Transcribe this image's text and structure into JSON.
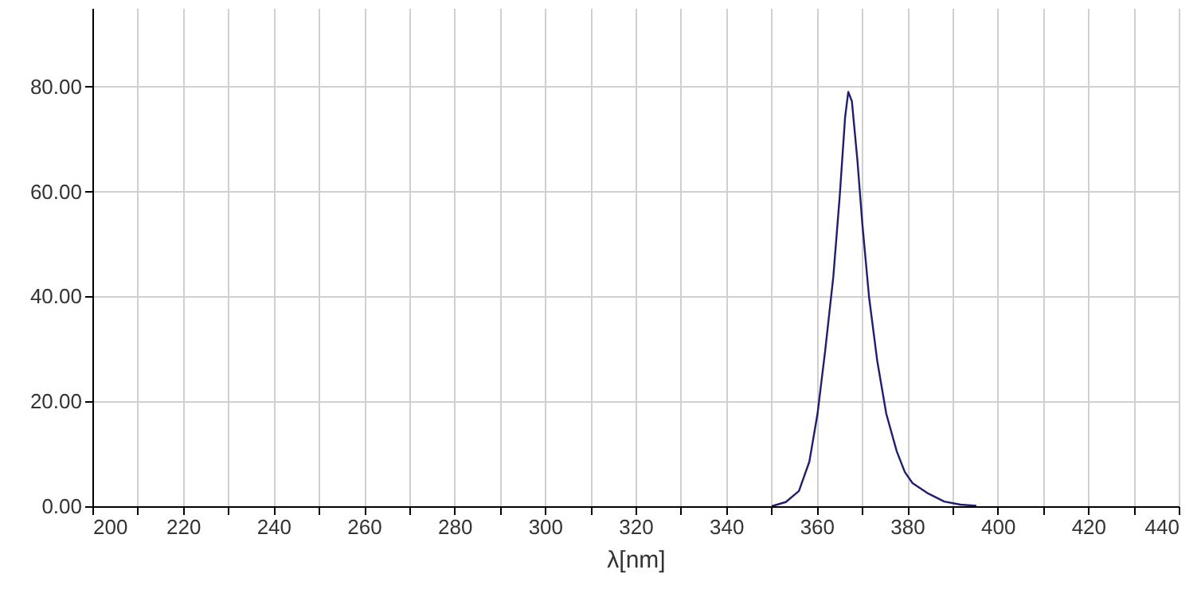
{
  "chart_data": {
    "type": "line",
    "xlabel": "λ[nm]",
    "x": [
      350.1,
      353.2,
      356.1,
      358.4,
      360.2,
      361.9,
      363.7,
      365.1,
      366.3,
      367.0,
      367.8,
      369.0,
      370.1,
      371.6,
      373.4,
      375.4,
      377.7,
      379.5,
      381.2,
      384.7,
      388.2,
      391.8,
      395.3
    ],
    "series": [
      {
        "color": "#1f1f6e",
        "values": [
          0,
          0.8,
          2.9,
          8.5,
          17.6,
          29.7,
          43.8,
          59.0,
          74.2,
          79.0,
          77.2,
          66.1,
          53.9,
          39.8,
          27.7,
          17.6,
          10.5,
          6.5,
          4.4,
          2.4,
          0.9,
          0.3,
          0.1
        ]
      }
    ],
    "xlim": [
      200,
      440
    ],
    "xticks": [
      200,
      {
        "value": 210,
        "label": null
      },
      220,
      {
        "value": 230,
        "label": null
      },
      240,
      {
        "value": 250,
        "label": null
      },
      260,
      {
        "value": 270,
        "label": null
      },
      280,
      {
        "value": 290,
        "label": null
      },
      300,
      {
        "value": 310,
        "label": null
      },
      320,
      {
        "value": 330,
        "label": null
      },
      340,
      {
        "value": 350,
        "label": null
      },
      360,
      {
        "value": 370,
        "label": null
      },
      380,
      {
        "value": 390,
        "label": null
      },
      400,
      {
        "value": 410,
        "label": null
      },
      420,
      {
        "value": 430,
        "label": null
      },
      440
    ],
    "ylim": [
      0,
      95
    ],
    "yticks": [
      {
        "value": 0,
        "label": "0.00"
      },
      {
        "value": 20,
        "label": "20.00"
      },
      {
        "value": 40,
        "label": "40.00"
      },
      {
        "value": 60,
        "label": "60.00"
      },
      {
        "value": 80,
        "label": "80.00"
      }
    ],
    "grid": true,
    "marker": "none",
    "line_style": "solid"
  }
}
